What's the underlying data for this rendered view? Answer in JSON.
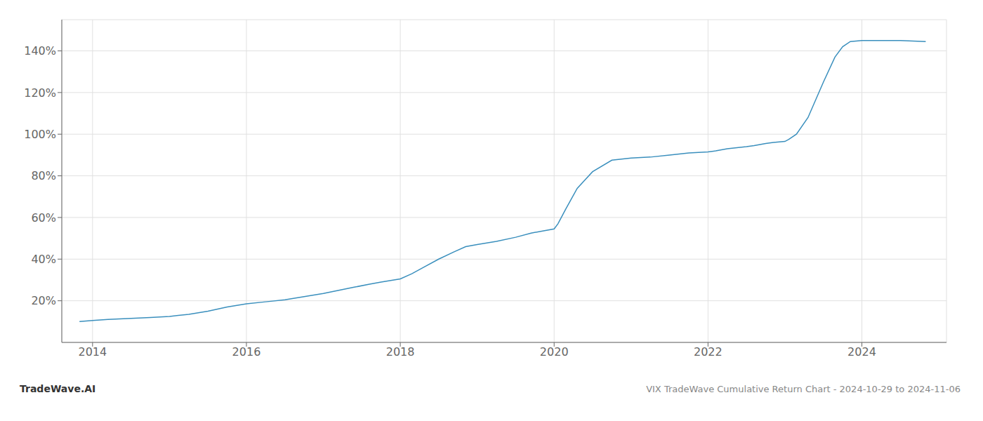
{
  "chart_data": {
    "type": "line",
    "title": "VIX TradeWave Cumulative Return Chart - 2024-10-29 to 2024-11-06",
    "annotations": [
      "TradeWave.AI"
    ],
    "x": [
      2013.83,
      2014.0,
      2014.2,
      2014.5,
      2014.75,
      2015.0,
      2015.25,
      2015.5,
      2015.75,
      2016.0,
      2016.25,
      2016.5,
      2016.75,
      2017.0,
      2017.2,
      2017.4,
      2017.6,
      2017.75,
      2018.0,
      2018.15,
      2018.3,
      2018.5,
      2018.7,
      2018.85,
      2019.0,
      2019.25,
      2019.5,
      2019.7,
      2019.85,
      2020.0,
      2020.05,
      2020.15,
      2020.3,
      2020.5,
      2020.75,
      2021.0,
      2021.25,
      2021.5,
      2021.75,
      2022.0,
      2022.1,
      2022.25,
      2022.5,
      2022.6,
      2022.75,
      2022.85,
      2023.0,
      2023.05,
      2023.15,
      2023.3,
      2023.5,
      2023.65,
      2023.75,
      2023.85,
      2024.0,
      2024.5,
      2024.83
    ],
    "values": [
      10.0,
      10.5,
      11.0,
      11.5,
      12.0,
      12.5,
      13.5,
      15.0,
      17.0,
      18.5,
      19.5,
      20.5,
      22.0,
      23.5,
      25.0,
      26.5,
      28.0,
      29.0,
      30.5,
      33.0,
      36.0,
      40.0,
      43.5,
      46.0,
      47.0,
      48.5,
      50.5,
      52.5,
      53.5,
      54.5,
      57.0,
      64.0,
      74.0,
      82.0,
      87.5,
      88.5,
      89.0,
      90.0,
      91.0,
      91.5,
      92.0,
      93.0,
      94.0,
      94.5,
      95.5,
      96.0,
      96.5,
      97.5,
      100.0,
      108.0,
      125.0,
      137.0,
      142.0,
      144.5,
      145.0,
      145.0,
      144.5
    ],
    "color": "#3a8fbd",
    "xlim": [
      2013.6,
      2025.1
    ],
    "ylim": [
      0,
      155
    ],
    "xticks": [
      2014,
      2016,
      2018,
      2020,
      2022,
      2024
    ],
    "yticks": [
      {
        "value": 20,
        "label": "20%"
      },
      {
        "value": 40,
        "label": "40%"
      },
      {
        "value": 60,
        "label": "60%"
      },
      {
        "value": 80,
        "label": "80%"
      },
      {
        "value": 100,
        "label": "100%"
      },
      {
        "value": 120,
        "label": "120%"
      },
      {
        "value": 140,
        "label": "140%"
      }
    ],
    "grid": true
  }
}
